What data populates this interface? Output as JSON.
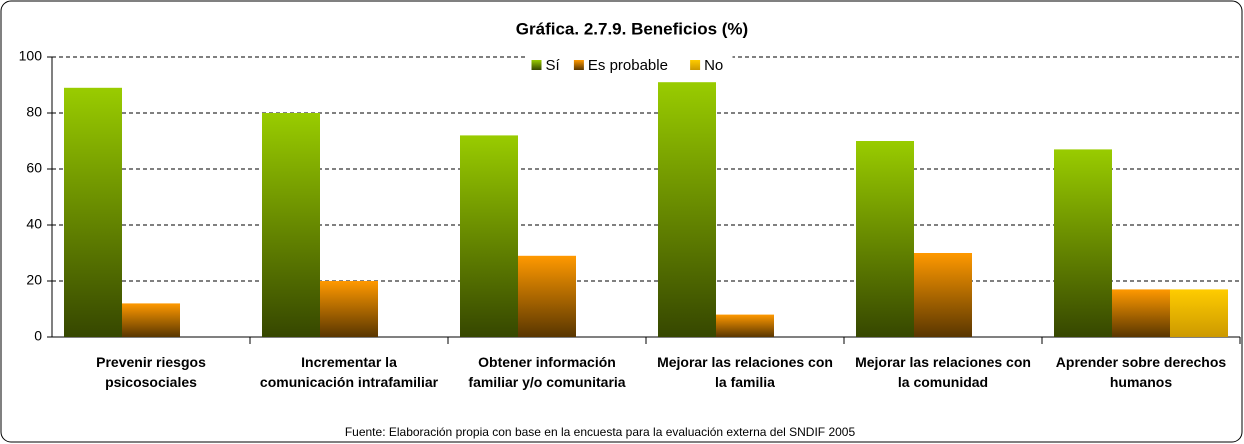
{
  "chart_data": {
    "type": "bar",
    "title": "Gráfica. 2.7.9. Beneficios (%)",
    "categories": [
      "Prevenir riesgos psicosociales",
      "Incrementar la comunicación intrafamiliar",
      "Obtener información familiar y/o comunitaria",
      "Mejorar las relaciones con la familia",
      "Mejorar las relaciones con la comunidad",
      "Aprender sobre derechos humanos"
    ],
    "series": [
      {
        "name": "Sí",
        "color": "#99cc00",
        "values": [
          89,
          80,
          72,
          91,
          70,
          67
        ]
      },
      {
        "name": "Es probable",
        "color": "#ff9900",
        "values": [
          12,
          20,
          29,
          8,
          30,
          17
        ]
      },
      {
        "name": "No",
        "color": "#ffcc00",
        "values": [
          0,
          0,
          0,
          0,
          0,
          17
        ]
      }
    ],
    "ylim": [
      0,
      100
    ],
    "yticks": [
      0,
      20,
      40,
      60,
      80,
      100
    ],
    "grid": true,
    "legend": "top",
    "source": "Fuente: Elaboración propia con base en la encuesta para la evaluación externa del SNDIF 2005"
  }
}
